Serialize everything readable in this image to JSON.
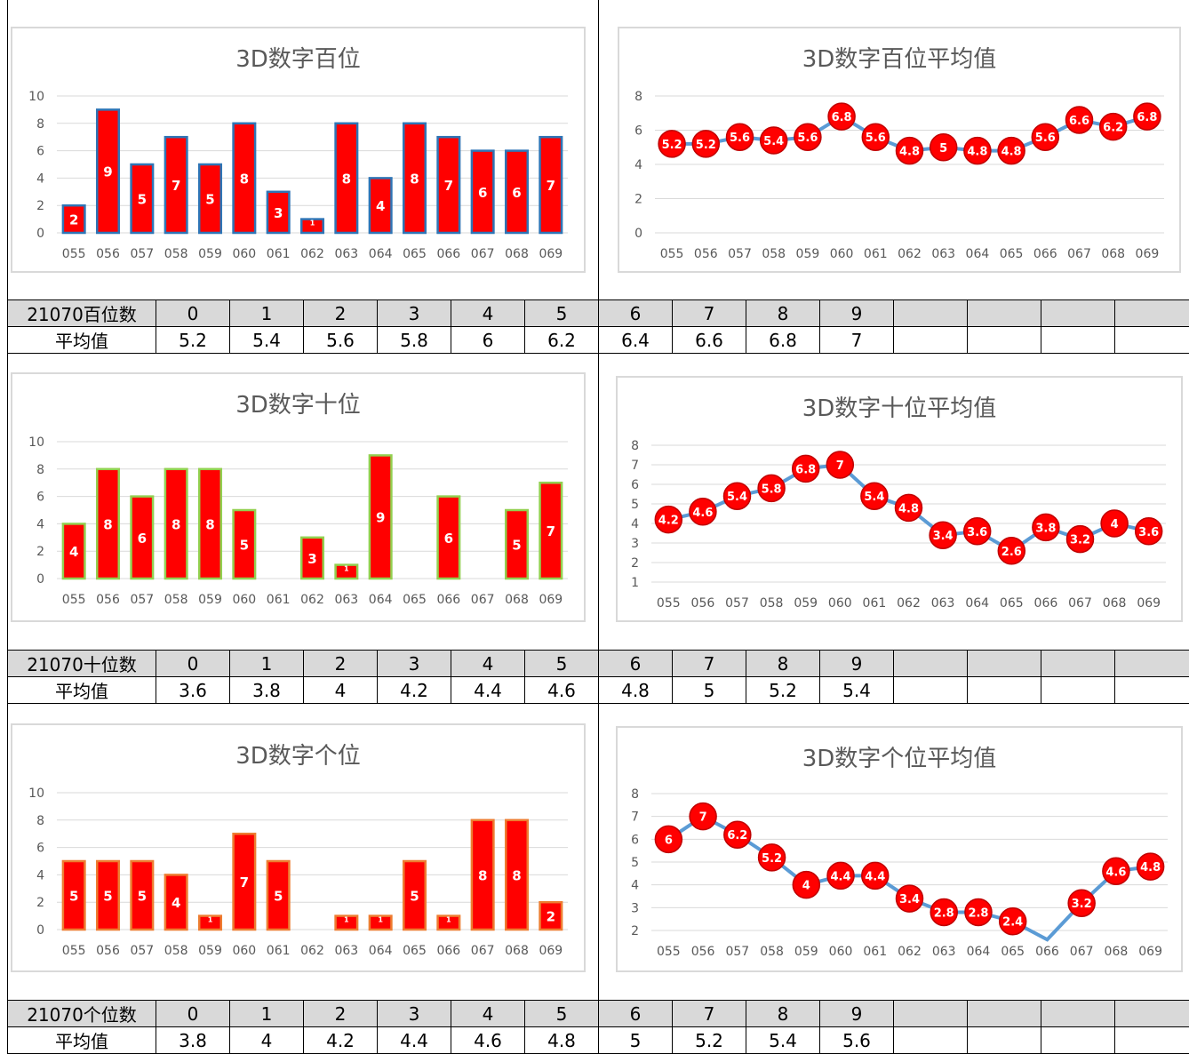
{
  "categories": [
    "055",
    "056",
    "057",
    "058",
    "059",
    "060",
    "061",
    "062",
    "063",
    "064",
    "065",
    "066",
    "067",
    "068",
    "069"
  ],
  "colors": {
    "bar_fill": "#ff0000",
    "bar_border_hundreds": "#2e75b6",
    "bar_border_tens": "#92d050",
    "bar_border_units": "#ed7d31",
    "line": "#5b9bd5",
    "marker": "#ff0000",
    "grid": "#d9d9d9",
    "axis_text": "#595959"
  },
  "sections": [
    {
      "table": {
        "header_label": "21070百位数",
        "row_label": "平均值",
        "digits": [
          "0",
          "1",
          "2",
          "3",
          "4",
          "5",
          "6",
          "7",
          "8",
          "9"
        ],
        "averages": [
          "5.2",
          "5.4",
          "5.6",
          "5.8",
          "6",
          "6.2",
          "6.4",
          "6.6",
          "6.8",
          "7"
        ]
      }
    },
    {
      "table": {
        "header_label": "21070十位数",
        "row_label": "平均值",
        "digits": [
          "0",
          "1",
          "2",
          "3",
          "4",
          "5",
          "6",
          "7",
          "8",
          "9"
        ],
        "averages": [
          "3.6",
          "3.8",
          "4",
          "4.2",
          "4.4",
          "4.6",
          "4.8",
          "5",
          "5.2",
          "5.4"
        ]
      }
    },
    {
      "table": {
        "header_label": "21070个位数",
        "row_label": "平均值",
        "digits": [
          "0",
          "1",
          "2",
          "3",
          "4",
          "5",
          "6",
          "7",
          "8",
          "9"
        ],
        "averages": [
          "3.8",
          "4",
          "4.2",
          "4.4",
          "4.6",
          "4.8",
          "5",
          "5.2",
          "5.4",
          "5.6"
        ]
      }
    }
  ],
  "chart_data": [
    {
      "type": "bar",
      "title": "3D数字百位",
      "categories": [
        "055",
        "056",
        "057",
        "058",
        "059",
        "060",
        "061",
        "062",
        "063",
        "064",
        "065",
        "066",
        "067",
        "068",
        "069"
      ],
      "values": [
        2,
        9,
        5,
        7,
        5,
        8,
        3,
        1,
        8,
        4,
        8,
        7,
        6,
        6,
        7
      ],
      "ylim": [
        0,
        10
      ],
      "yticks": [
        0,
        2,
        4,
        6,
        8,
        10
      ],
      "xlabel": "",
      "ylabel": "",
      "grid": true
    },
    {
      "type": "line",
      "title": "3D数字百位平均值",
      "categories": [
        "055",
        "056",
        "057",
        "058",
        "059",
        "060",
        "061",
        "062",
        "063",
        "064",
        "065",
        "066",
        "067",
        "068",
        "069"
      ],
      "values": [
        5.2,
        5.2,
        5.6,
        5.4,
        5.6,
        6.8,
        5.6,
        4.8,
        5,
        4.8,
        4.8,
        5.6,
        6.6,
        6.2,
        6.8
      ],
      "ylim": [
        0,
        8
      ],
      "yticks": [
        0,
        2,
        4,
        6,
        8
      ],
      "xlabel": "",
      "ylabel": "",
      "grid": true
    },
    {
      "type": "bar",
      "title": "3D数字十位",
      "categories": [
        "055",
        "056",
        "057",
        "058",
        "059",
        "060",
        "061",
        "062",
        "063",
        "064",
        "065",
        "066",
        "067",
        "068",
        "069"
      ],
      "values": [
        4,
        8,
        6,
        8,
        8,
        5,
        0,
        3,
        1,
        9,
        0,
        6,
        0,
        5,
        7
      ],
      "ylim": [
        0,
        10
      ],
      "yticks": [
        0,
        2,
        4,
        6,
        8,
        10
      ],
      "xlabel": "",
      "ylabel": "",
      "grid": true
    },
    {
      "type": "line",
      "title": "3D数字十位平均值",
      "categories": [
        "055",
        "056",
        "057",
        "058",
        "059",
        "060",
        "061",
        "062",
        "063",
        "064",
        "065",
        "066",
        "067",
        "068",
        "069"
      ],
      "values": [
        4.2,
        4.6,
        5.4,
        5.8,
        6.8,
        7,
        5.4,
        4.8,
        3.4,
        3.6,
        2.6,
        3.8,
        3.2,
        4,
        3.6
      ],
      "ylim": [
        1,
        8
      ],
      "yticks": [
        1,
        2,
        3,
        4,
        5,
        6,
        7,
        8
      ],
      "xlabel": "",
      "ylabel": "",
      "grid": true
    },
    {
      "type": "bar",
      "title": "3D数字个位",
      "categories": [
        "055",
        "056",
        "057",
        "058",
        "059",
        "060",
        "061",
        "062",
        "063",
        "064",
        "065",
        "066",
        "067",
        "068",
        "069"
      ],
      "values": [
        5,
        5,
        5,
        4,
        1,
        7,
        5,
        0,
        1,
        1,
        5,
        1,
        8,
        8,
        2
      ],
      "ylim": [
        0,
        10
      ],
      "yticks": [
        0,
        2,
        4,
        6,
        8,
        10
      ],
      "xlabel": "",
      "ylabel": "",
      "grid": true
    },
    {
      "type": "line",
      "title": "3D数字个位平均值",
      "categories": [
        "055",
        "056",
        "057",
        "058",
        "059",
        "060",
        "061",
        "062",
        "063",
        "064",
        "065",
        "066",
        "067",
        "068",
        "069"
      ],
      "values": [
        6,
        7,
        6.2,
        5.2,
        4,
        4.4,
        4.4,
        3.4,
        2.8,
        2.8,
        2.4,
        1.6,
        3.2,
        4.6,
        4.8
      ],
      "ylim": [
        2,
        8
      ],
      "yticks": [
        2,
        3,
        4,
        5,
        6,
        7,
        8
      ],
      "xlabel": "",
      "ylabel": "",
      "grid": true
    }
  ]
}
